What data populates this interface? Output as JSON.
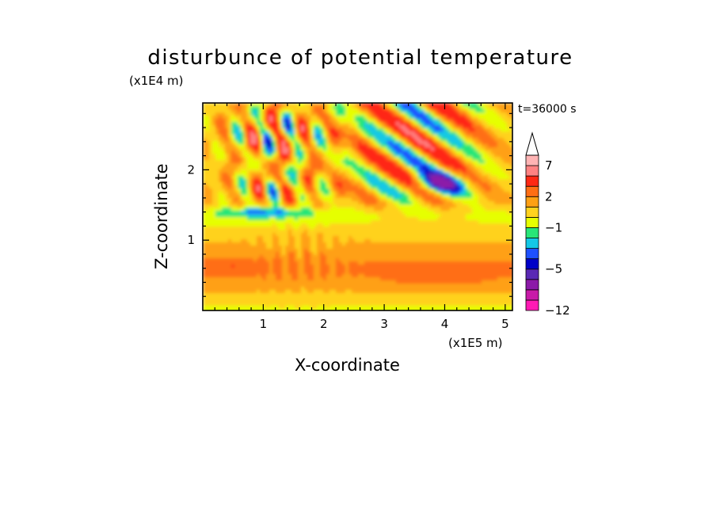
{
  "title": "disturbunce of potential temperature",
  "time_label": "t=36000 s",
  "x_unit": "(x1E5 m)",
  "y_unit": "(x1E4 m)",
  "chart_data": {
    "type": "heatmap",
    "title": "disturbunce of potential temperature",
    "xlabel": "X-coordinate",
    "ylabel": "Z-coordinate",
    "x_unit": "(x1E5 m)",
    "y_unit": "(x1E4 m)",
    "xlim": [
      0,
      5.12
    ],
    "ylim": [
      0,
      2.95
    ],
    "x_ticks": [
      1,
      2,
      3,
      4,
      5
    ],
    "y_ticks": [
      1,
      2
    ],
    "x_minor_step": 0.2,
    "y_minor_step": 0.2,
    "annotation": "t=36000 s",
    "colorbar": {
      "levels": [
        -12,
        -10,
        -8,
        -6,
        -5,
        -4,
        -3,
        -2,
        -1,
        0,
        1,
        2,
        3,
        5,
        7,
        9,
        11
      ],
      "tick_labels": [
        "7",
        "2",
        "-1",
        "-5",
        "-12"
      ],
      "tick_values": [
        7,
        2,
        -1,
        -5,
        -12
      ],
      "colors": [
        "#ff1ab4",
        "#c81aa8",
        "#8c1aa8",
        "#5a28b4",
        "#0000c8",
        "#1e50ff",
        "#14c8e6",
        "#28e678",
        "#e6ff00",
        "#ffd21e",
        "#ffa014",
        "#ff6e14",
        "#ff2814",
        "#ff8282",
        "#ffb4b4"
      ],
      "extend": "max"
    },
    "field_regions": [
      {
        "region": "z 0.0-0.35, all x",
        "value_range": [
          0,
          2
        ]
      },
      {
        "region": "z 0.35-0.9, x 0-5.1 (broad warm layer)",
        "value_range": [
          1.5,
          3
        ]
      },
      {
        "region": "z 0.35-0.55, x 2.6-5.0",
        "value_range": [
          2.5,
          3.5
        ]
      },
      {
        "region": "z 1.3-1.5, x 0-2.0 (cold band)",
        "value_range": [
          -5,
          -1
        ]
      },
      {
        "region": "z 1.5-2.9, x 0-2.2 (wave fan)",
        "value_range": [
          -5,
          7
        ]
      },
      {
        "region": "z 1.7-2.9, x 2.2-5.1 (wave packets)",
        "value_range": [
          -6,
          6
        ]
      },
      {
        "region": "z 1.65-2.05, x 3.3-4.3 (cold core)",
        "value_range": [
          -8,
          -4
        ]
      }
    ]
  }
}
